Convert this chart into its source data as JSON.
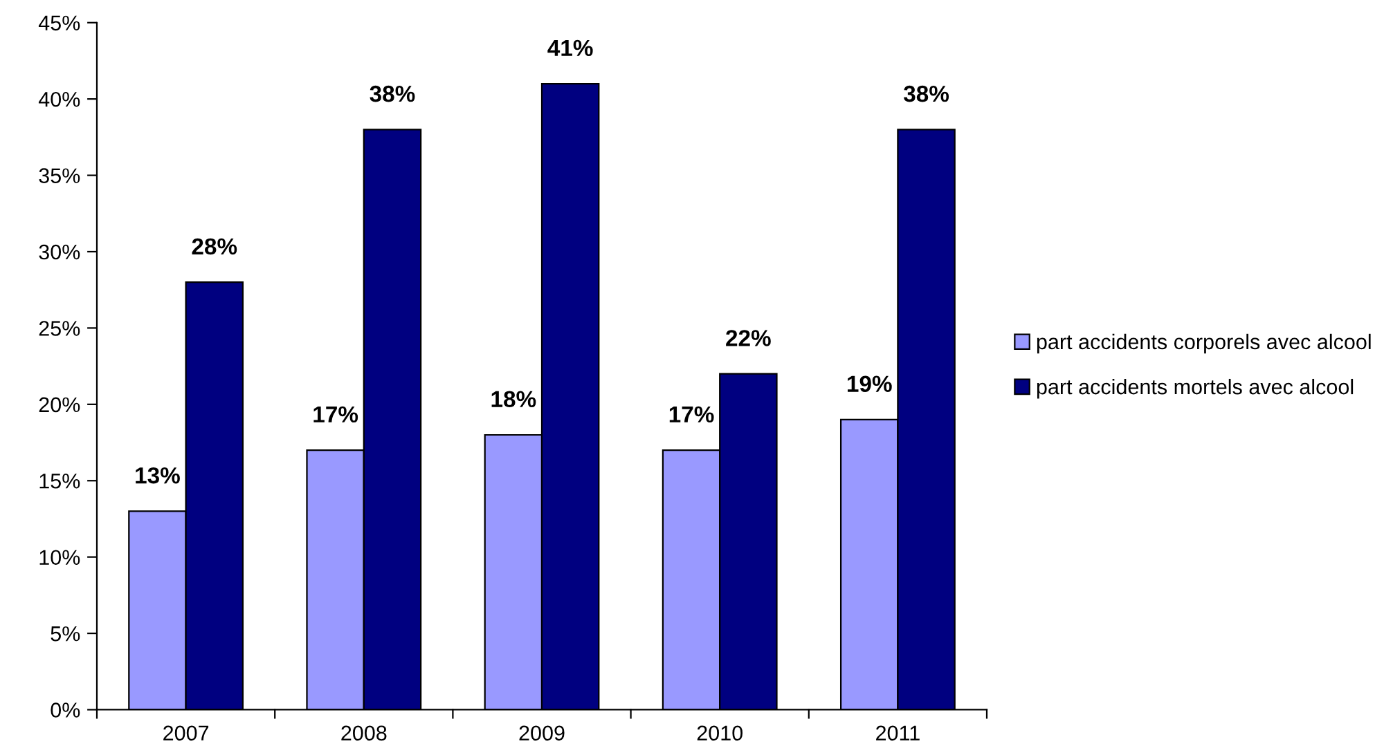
{
  "chart_data": {
    "type": "bar",
    "categories": [
      "2007",
      "2008",
      "2009",
      "2010",
      "2011"
    ],
    "series": [
      {
        "name": "part accidents corporels avec alcool",
        "color": "#9999ff",
        "values": [
          13,
          17,
          18,
          17,
          19
        ],
        "value_labels": [
          "13%",
          "17%",
          "18%",
          "17%",
          "19%"
        ]
      },
      {
        "name": "part accidents mortels avec alcool",
        "color": "#000080",
        "values": [
          28,
          38,
          41,
          22,
          38
        ],
        "value_labels": [
          "28%",
          "38%",
          "41%",
          "22%",
          "38%"
        ]
      }
    ],
    "ylim": [
      0,
      45
    ],
    "yticks": [
      {
        "value": 0,
        "label": "0%"
      },
      {
        "value": 5,
        "label": "5%"
      },
      {
        "value": 10,
        "label": "10%"
      },
      {
        "value": 15,
        "label": "15%"
      },
      {
        "value": 20,
        "label": "20%"
      },
      {
        "value": 25,
        "label": "25%"
      },
      {
        "value": 30,
        "label": "30%"
      },
      {
        "value": 35,
        "label": "35%"
      },
      {
        "value": 40,
        "label": "40%"
      },
      {
        "value": 45,
        "label": "45%"
      }
    ],
    "grid": false,
    "legend": "right"
  }
}
